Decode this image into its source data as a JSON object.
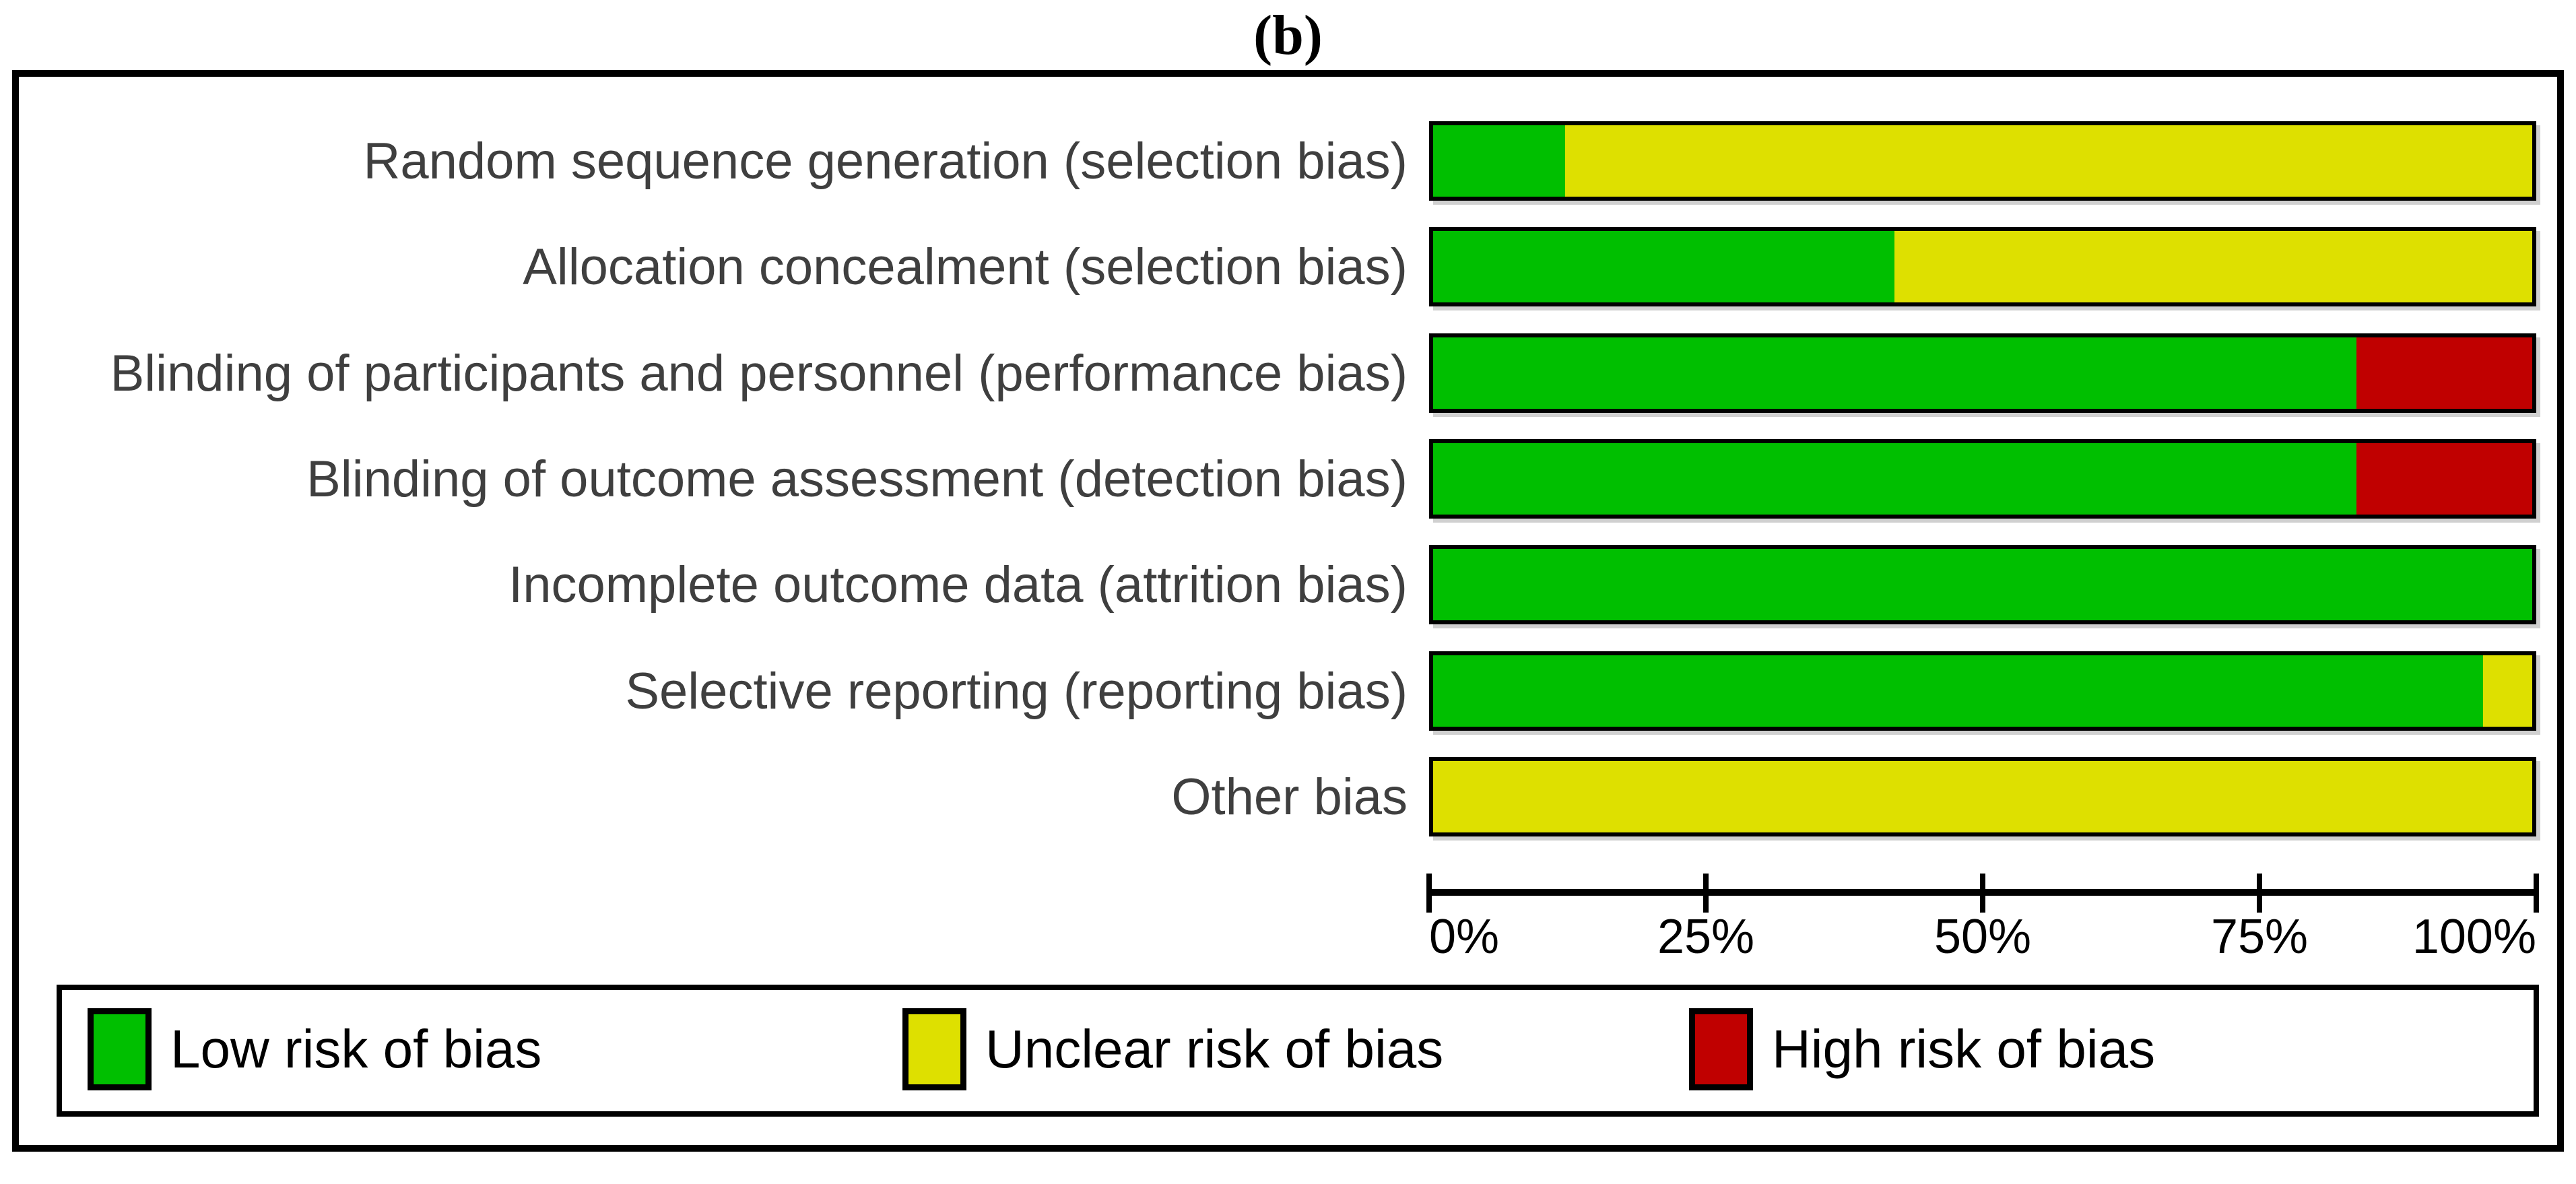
{
  "title": "(b)",
  "colors": {
    "low_risk": "#00BF00",
    "unclear_risk": "#DEE000",
    "high_risk": "#C00000",
    "bar_border": "#000000",
    "row_label_text": "#3F3F3F",
    "axis_text": "#000000"
  },
  "axis": {
    "tick_labels": [
      "0%",
      "25%",
      "50%",
      "75%",
      "100%"
    ]
  },
  "legend": {
    "items": [
      {
        "label": "Low risk of bias",
        "color": "#00BF00"
      },
      {
        "label": "Unclear risk of bias",
        "color": "#DEE000"
      },
      {
        "label": "High risk of bias",
        "color": "#C00000"
      }
    ]
  },
  "chart_data": {
    "type": "bar",
    "orientation": "horizontal_stacked",
    "title": "(b)",
    "categories": [
      "Random sequence generation (selection bias)",
      "Allocation concealment (selection bias)",
      "Blinding of participants and personnel (performance bias)",
      "Blinding of outcome assessment (detection bias)",
      "Incomplete outcome data (attrition bias)",
      "Selective reporting (reporting bias)",
      "Other bias"
    ],
    "series": [
      {
        "name": "Low risk of bias",
        "color": "#00BF00",
        "values": [
          12,
          42,
          84,
          84,
          100,
          95.5,
          0
        ]
      },
      {
        "name": "Unclear risk of bias",
        "color": "#DEE000",
        "values": [
          88,
          58,
          0,
          0,
          0,
          4.5,
          100
        ]
      },
      {
        "name": "High risk of bias",
        "color": "#C00000",
        "values": [
          0,
          0,
          16,
          16,
          0,
          0,
          0
        ]
      }
    ],
    "xlim": [
      0,
      100
    ],
    "x_tick_labels": [
      "0%",
      "25%",
      "50%",
      "75%",
      "100%"
    ],
    "xlabel": "",
    "ylabel": "",
    "grid": false,
    "legend_position": "bottom"
  }
}
